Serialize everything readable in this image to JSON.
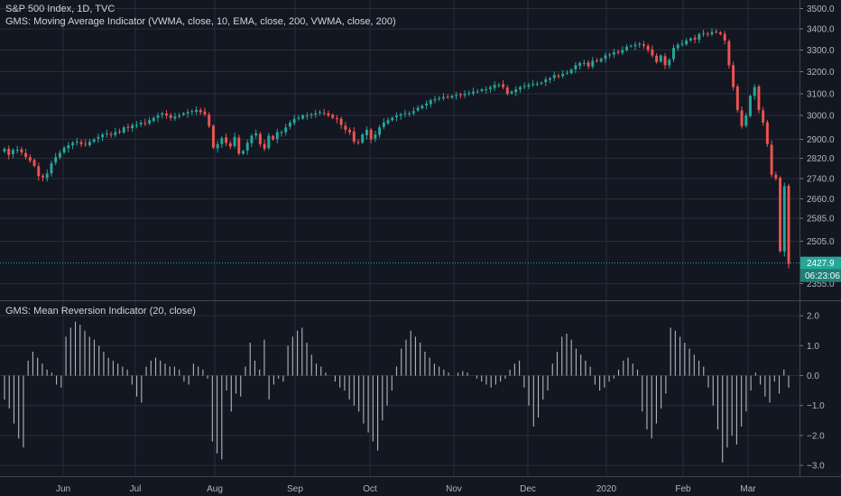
{
  "chart_data": [
    {
      "type": "candlestick",
      "title": "S&P 500 Index, 1D, TVC",
      "subtitle": "GMS: Moving Average Indicator (VWMA, close, 10, EMA, close, 200, VWMA, close, 200)",
      "y_ticks": [
        2355.0,
        2425.0,
        2505.0,
        2585.0,
        2660.0,
        2740.0,
        2820.0,
        2900.0,
        3000.0,
        3100.0,
        3200.0,
        3300.0,
        3400.0,
        3500.0
      ],
      "y_tick_labels": [
        "2355.0",
        "",
        "2505.0",
        "2585.0",
        "2660.0",
        "2740.0",
        "2820.0",
        "2900.0",
        "3000.0",
        "3100.0",
        "3200.0",
        "3300.0",
        "3400.0",
        "3500.0"
      ],
      "ylim": [
        2320,
        3530
      ],
      "x_ticks": [
        "Jun",
        "Jul",
        "Aug",
        "Sep",
        "Oct",
        "Nov",
        "Dec",
        "2020",
        "Feb",
        "Mar"
      ],
      "last_price": "2427.9",
      "countdown": "06:23:06",
      "colors": {
        "up": "#26a69a",
        "down": "#ef5350",
        "price_line": "#26a69a"
      },
      "closes": [
        2860,
        2834,
        2855,
        2856,
        2845,
        2825,
        2810,
        2790,
        2750,
        2745,
        2760,
        2800,
        2825,
        2843,
        2865,
        2875,
        2885,
        2890,
        2880,
        2878,
        2890,
        2900,
        2910,
        2920,
        2925,
        2918,
        2930,
        2930,
        2950,
        2950,
        2960,
        2960,
        2970,
        2965,
        2980,
        2990,
        3000,
        3010,
        3000,
        2990,
        2995,
        3000,
        3010,
        3015,
        3020,
        3025,
        3015,
        3005,
        2955,
        2865,
        2880,
        2905,
        2885,
        2870,
        2910,
        2840,
        2850,
        2885,
        2915,
        2925,
        2880,
        2860,
        2915,
        2900,
        2930,
        2930,
        2950,
        2970,
        2985,
        2990,
        3000,
        3000,
        3005,
        3010,
        3015,
        3010,
        3000,
        2990,
        2985,
        2960,
        2940,
        2930,
        2890,
        2885,
        2920,
        2940,
        2900,
        2920,
        2950,
        2970,
        2980,
        2990,
        3000,
        3005,
        3010,
        3010,
        3020,
        3035,
        3045,
        3055,
        3070,
        3075,
        3080,
        3085,
        3085,
        3090,
        3095,
        3095,
        3100,
        3105,
        3110,
        3110,
        3120,
        3120,
        3130,
        3140,
        3140,
        3130,
        3100,
        3110,
        3120,
        3130,
        3135,
        3140,
        3145,
        3145,
        3150,
        3165,
        3170,
        3185,
        3180,
        3190,
        3195,
        3210,
        3230,
        3240,
        3240,
        3225,
        3250,
        3250,
        3260,
        3275,
        3280,
        3290,
        3290,
        3300,
        3315,
        3320,
        3325,
        3330,
        3320,
        3300,
        3275,
        3245,
        3275,
        3230,
        3255,
        3310,
        3325,
        3330,
        3345,
        3355,
        3350,
        3375,
        3380,
        3375,
        3385,
        3385,
        3375,
        3345,
        3230,
        3130,
        3025,
        2955,
        3000,
        3090,
        3130,
        3025,
        2970,
        2880,
        2755,
        2740,
        2470,
        2710,
        2425
      ]
    },
    {
      "type": "bar",
      "title": "GMS: Mean Reversion Indicator (20, close)",
      "y_ticks": [
        -3.0,
        -2.0,
        -1.0,
        0.0,
        1.0,
        2.0
      ],
      "y_tick_labels": [
        "−3.0",
        "−2.0",
        "−1.0",
        "0.0",
        "1.0",
        "2.0"
      ],
      "ylim": [
        -3.25,
        2.15
      ],
      "colors": {
        "bars": "#b2b5be"
      },
      "values": [
        -0.8,
        -1.1,
        -1.6,
        -2.1,
        -2.4,
        0.5,
        0.8,
        0.6,
        0.4,
        0.2,
        0.1,
        -0.3,
        -0.4,
        1.3,
        1.6,
        1.8,
        1.7,
        1.5,
        1.3,
        1.2,
        1.0,
        0.8,
        0.6,
        0.5,
        0.4,
        0.3,
        0.2,
        -0.3,
        -0.7,
        -0.9,
        0.3,
        0.5,
        0.6,
        0.5,
        0.4,
        0.3,
        0.3,
        0.2,
        -0.2,
        -0.3,
        0.4,
        0.3,
        0.2,
        -0.1,
        -2.2,
        -2.6,
        -2.8,
        -0.5,
        -1.2,
        -0.6,
        -0.7,
        0.3,
        1.1,
        0.5,
        0.2,
        1.2,
        -0.8,
        -0.3,
        -0.1,
        -0.2,
        1.0,
        1.3,
        1.5,
        1.6,
        1.1,
        0.7,
        0.4,
        0.3,
        0.1,
        0.0,
        -0.2,
        -0.4,
        -0.5,
        -0.8,
        -1.0,
        -1.2,
        -1.6,
        -1.9,
        -2.2,
        -2.5,
        -1.5,
        -1.0,
        -0.5,
        0.3,
        0.9,
        1.2,
        1.5,
        1.3,
        1.1,
        0.8,
        0.6,
        0.4,
        0.3,
        0.2,
        0.1,
        0.0,
        0.1,
        0.15,
        0.1,
        0.0,
        -0.1,
        -0.2,
        -0.3,
        -0.4,
        -0.3,
        -0.2,
        -0.1,
        0.2,
        0.4,
        0.5,
        -0.4,
        -1.0,
        -1.7,
        -1.4,
        -0.8,
        -0.5,
        0.4,
        0.8,
        1.3,
        1.4,
        1.2,
        0.9,
        0.7,
        0.5,
        0.3,
        -0.3,
        -0.5,
        -0.4,
        -0.2,
        -0.1,
        0.2,
        0.5,
        0.6,
        0.4,
        0.2,
        -1.2,
        -1.8,
        -2.1,
        -1.6,
        -1.1,
        -0.6,
        1.6,
        1.5,
        1.3,
        1.1,
        0.9,
        0.7,
        0.5,
        0.3,
        -0.4,
        -1.0,
        -1.8,
        -2.9,
        -2.4,
        -2.0,
        -2.3,
        -1.7,
        -1.2,
        -0.5,
        0.1,
        -0.3,
        -0.7,
        -0.9,
        -0.2,
        -0.6,
        0.2,
        -0.4
      ]
    }
  ]
}
